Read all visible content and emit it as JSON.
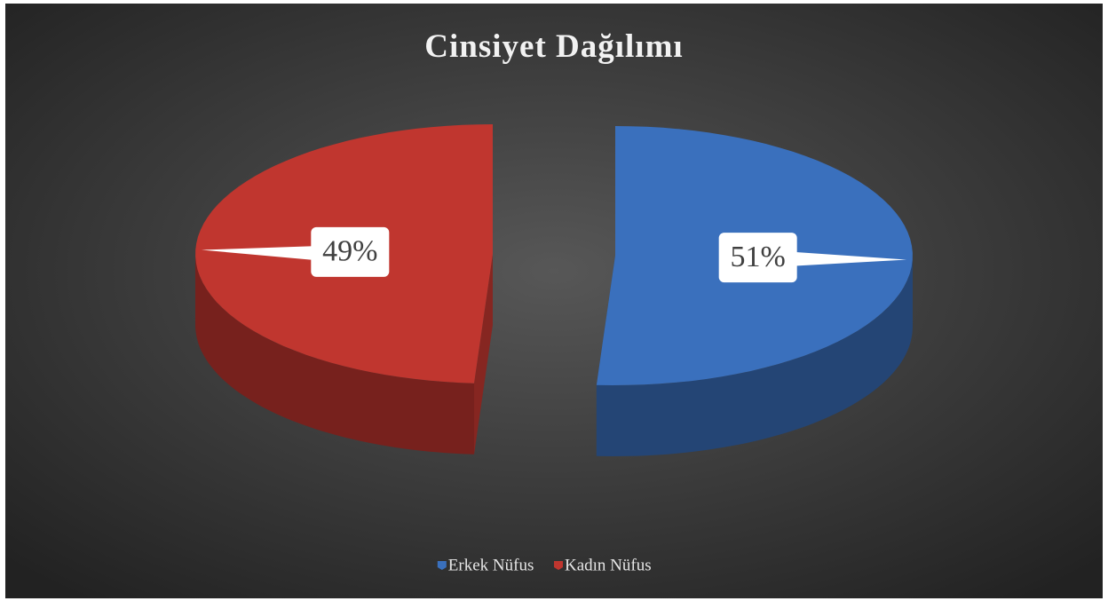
{
  "chart_data": {
    "type": "pie",
    "title": "Cinsiyet Dağılımı",
    "categories": [
      "Erkek Nüfus",
      "Kadın Nüfus"
    ],
    "values": [
      51,
      49
    ],
    "value_labels": [
      "51%",
      "49%"
    ],
    "colors": [
      "#3a70bd",
      "#c0362f"
    ],
    "legend": "bottom"
  }
}
